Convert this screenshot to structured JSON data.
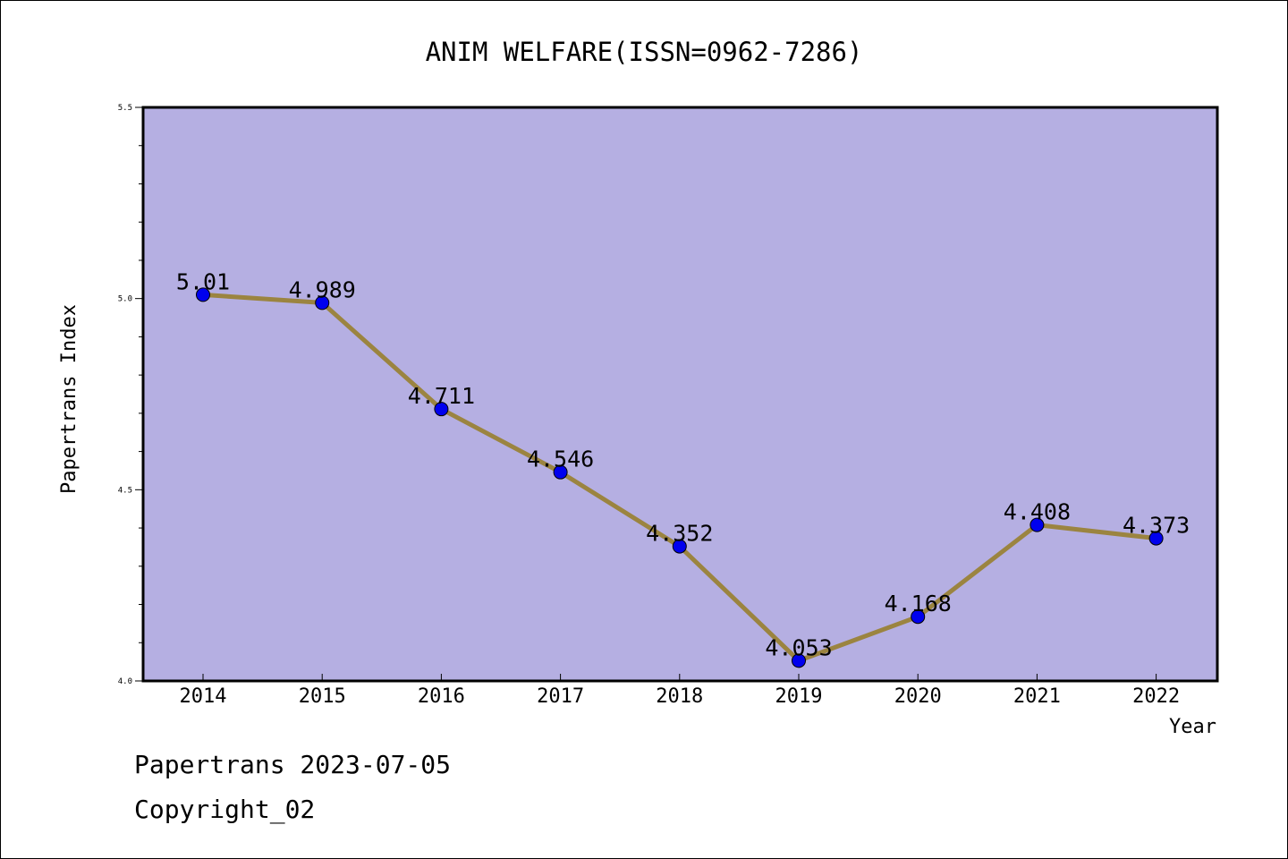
{
  "chart_data": {
    "type": "line",
    "title": "ANIM WELFARE(ISSN=0962-7286)",
    "xlabel": "Year",
    "ylabel": "Papertrans Index",
    "ylim": [
      4.0,
      5.5
    ],
    "yticks": [
      "4.0",
      "4.5",
      "5.0",
      "5.5"
    ],
    "categories": [
      "2014",
      "2015",
      "2016",
      "2017",
      "2018",
      "2019",
      "2020",
      "2021",
      "2022"
    ],
    "values": [
      5.01,
      4.989,
      4.711,
      4.546,
      4.352,
      4.053,
      4.168,
      4.408,
      4.373
    ],
    "value_labels": [
      "5.01",
      "4.989",
      "4.711",
      "4.546",
      "4.352",
      "4.053",
      "4.168",
      "4.408",
      "4.373"
    ],
    "grid": false,
    "colors": {
      "plot_background": "#b5afe2",
      "line": "#9b8440",
      "marker": "#0000ee"
    }
  },
  "footer": {
    "line1": "Papertrans 2023-07-05",
    "line2": "Copyright_02"
  }
}
